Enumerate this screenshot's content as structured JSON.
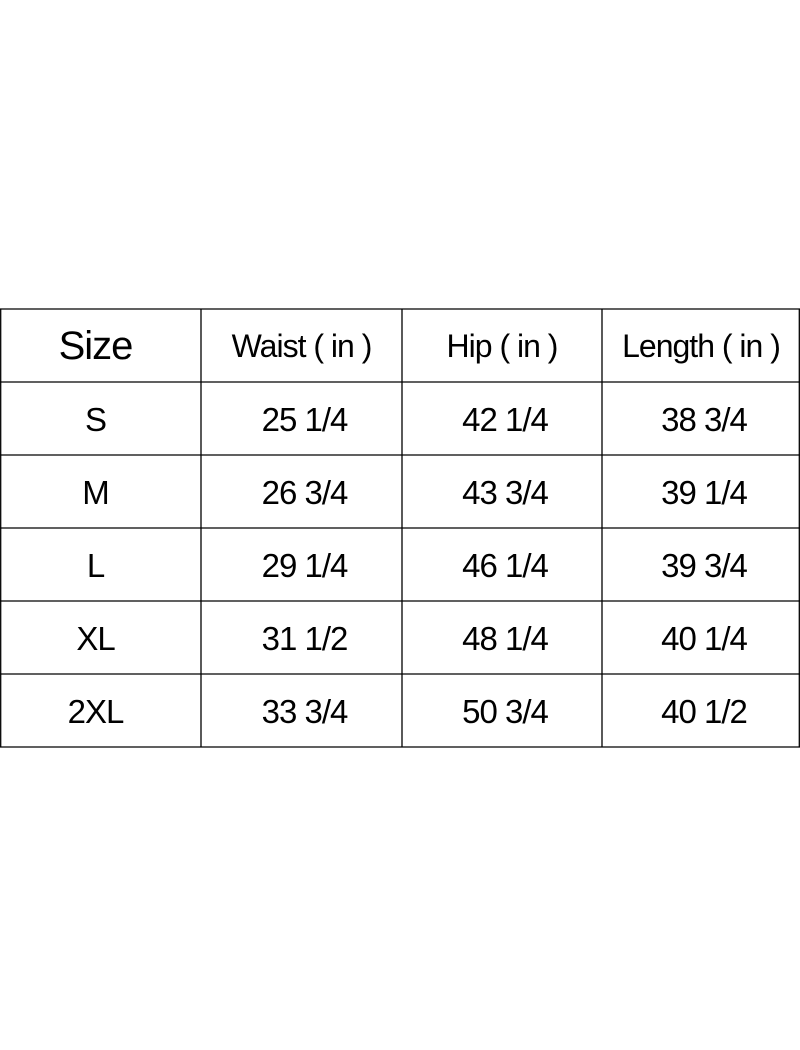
{
  "table": {
    "header": [
      "Size",
      "Waist ( in )",
      "Hip ( in )",
      "Length ( in )"
    ],
    "rows": [
      [
        "S",
        "25 1/4",
        "42 1/4",
        "38 3/4"
      ],
      [
        "M",
        "26 3/4",
        "43 3/4",
        "39 1/4"
      ],
      [
        "L",
        "29 1/4",
        "46 1/4",
        "39 3/4"
      ],
      [
        "XL",
        "31 1/2",
        "48 1/4",
        "40 1/4"
      ],
      [
        "2XL",
        "33 3/4",
        "50 3/4",
        "40 1/2"
      ]
    ]
  }
}
